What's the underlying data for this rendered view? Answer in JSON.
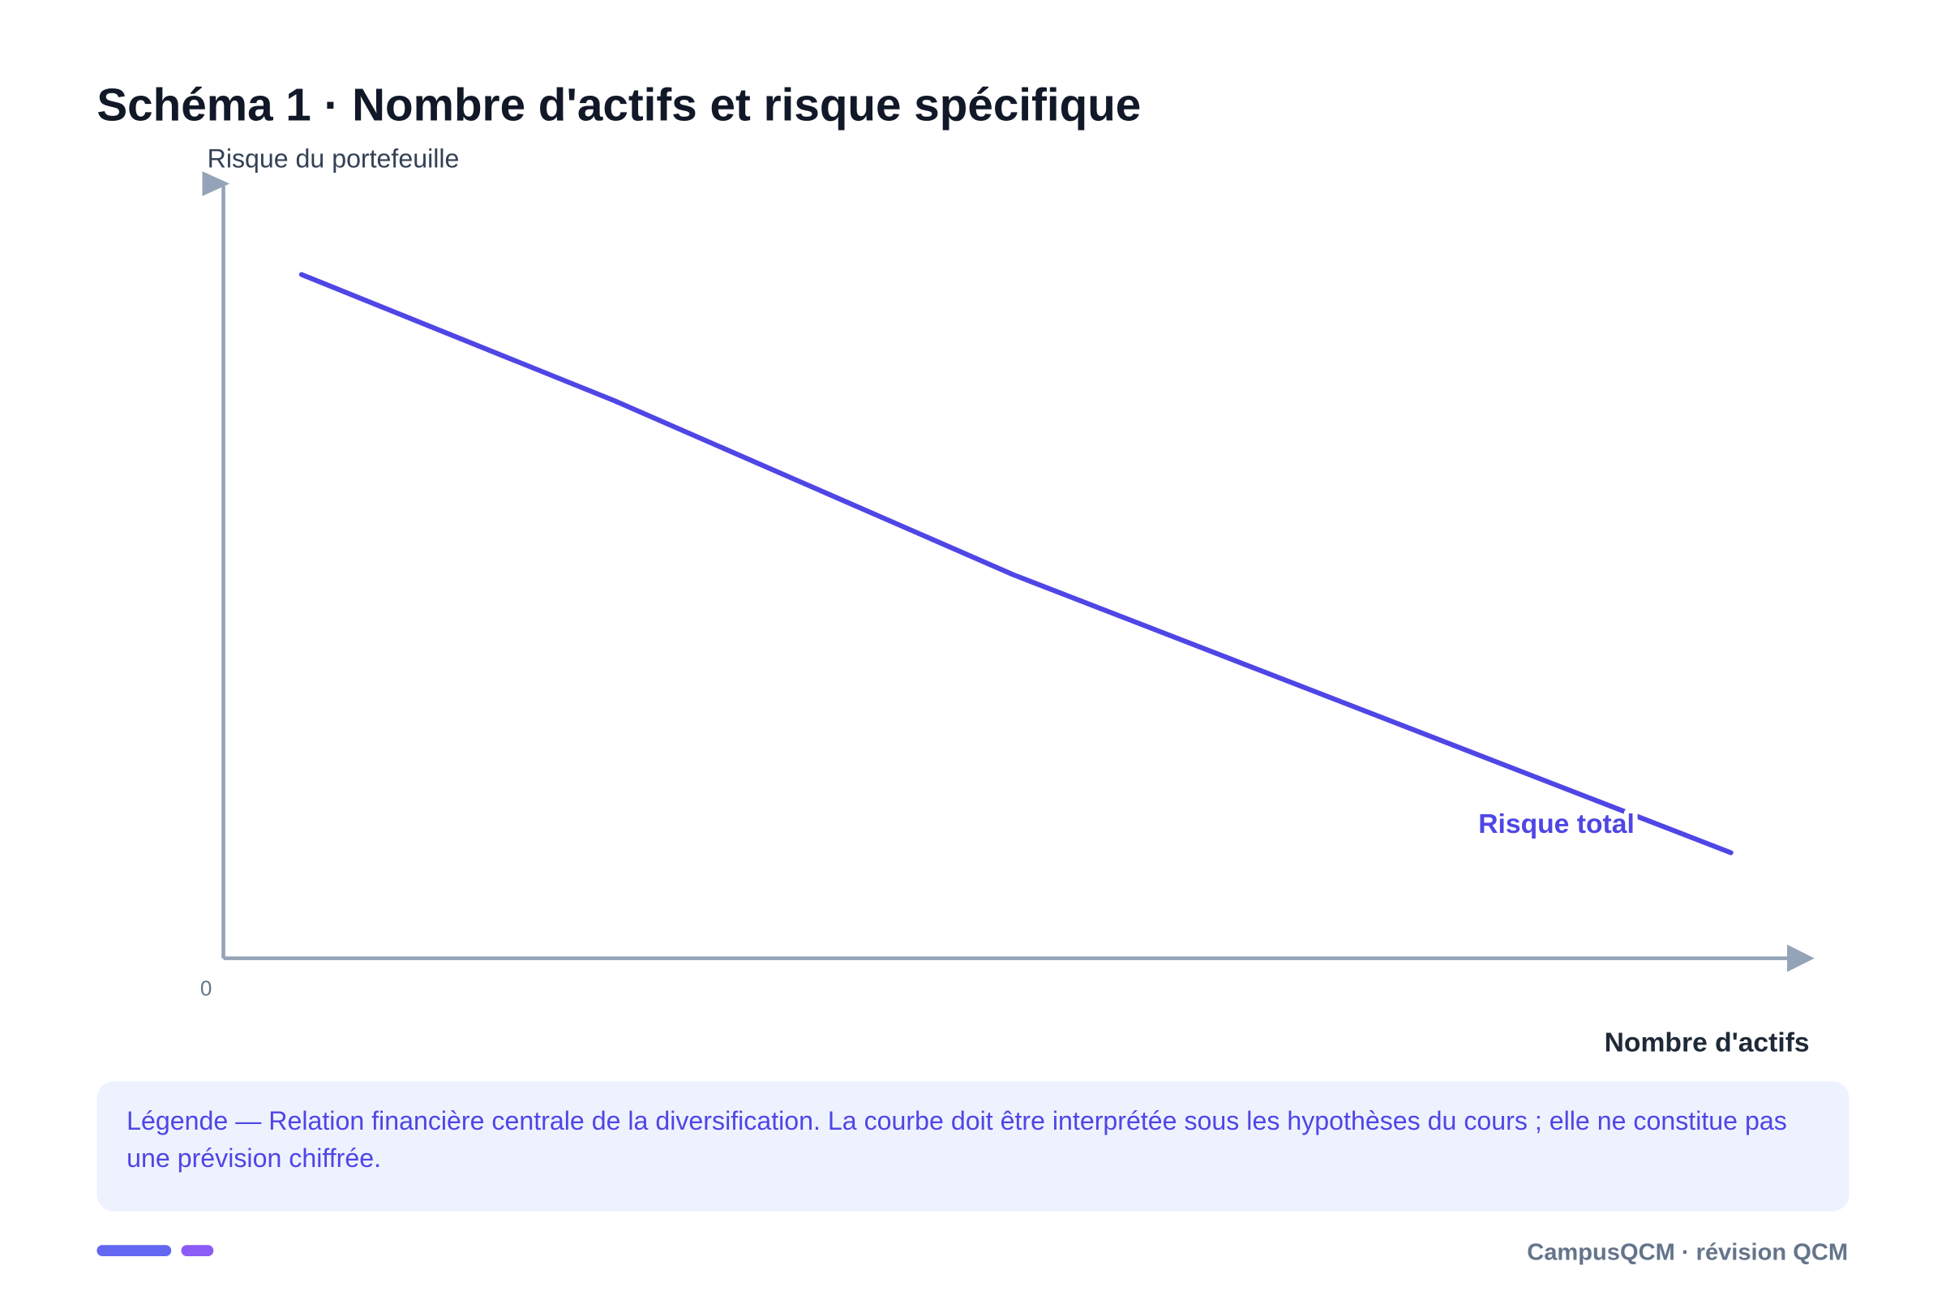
{
  "chart_data": {
    "type": "line",
    "title": "Schéma 1 · Nombre d'actifs et risque spécifique",
    "ylabel": "Risque du portefeuille",
    "xlabel": "Nombre d'actifs",
    "x": [
      5,
      25,
      50.5,
      96.4
    ],
    "series": [
      {
        "name": "Risque total",
        "color": "#4f46e5",
        "values": [
          90,
          73.4,
          50.5,
          13.9
        ]
      }
    ],
    "xlim": [
      0,
      100
    ],
    "ylim": [
      0,
      100
    ],
    "yticks": [
      0
    ],
    "grid": false
  },
  "caption": "Légende — Relation financière centrale de la diversification. La courbe doit être interprétée sous les hypothèses du cours ; elle ne constitue pas une prévision chiffrée.",
  "footer": "CampusQCM · révision QCM"
}
